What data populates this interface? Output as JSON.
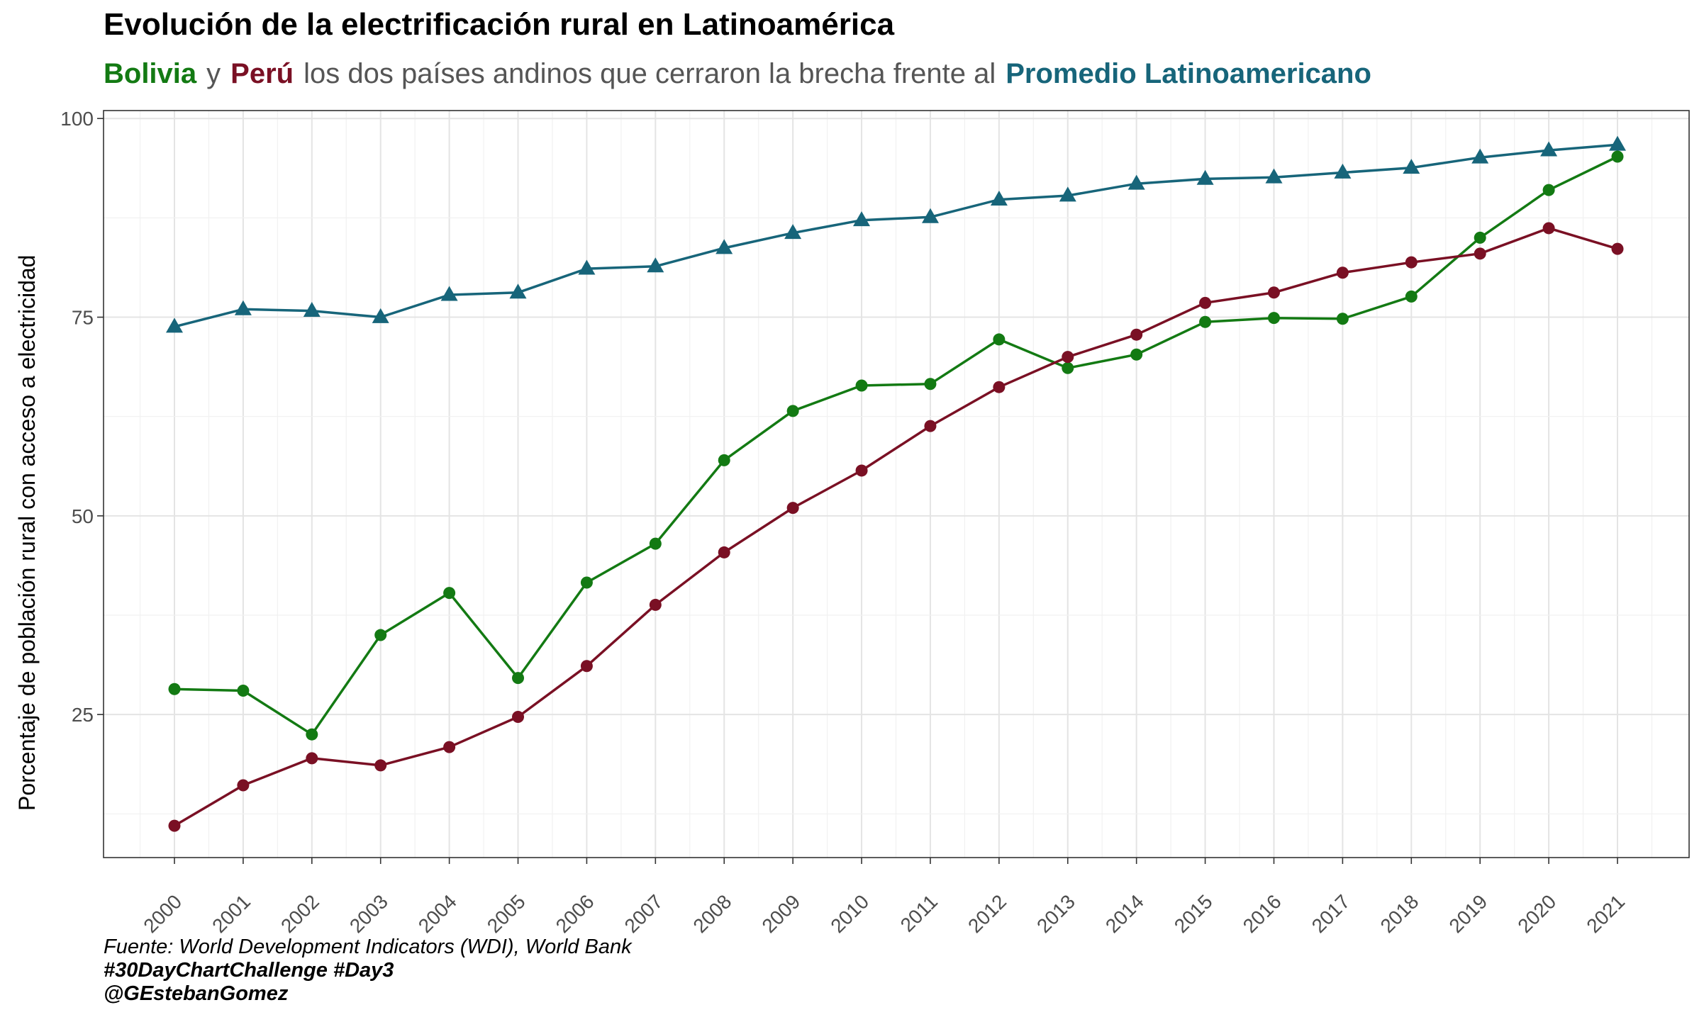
{
  "chart_data": {
    "type": "line",
    "title": "Evolución de la electrificación rural en Latinoamérica",
    "subtitle": {
      "bolivia": "Bolivia",
      "y": "y",
      "peru": "Perú",
      "middle": "los dos países andinos que cerraron la brecha frente al",
      "promedio": "Promedio Latinoamericano"
    },
    "ylabel": "Porcentaje de población rural con acceso a electricidad",
    "xlabel": "",
    "x": [
      "2000",
      "2001",
      "2002",
      "2003",
      "2004",
      "2005",
      "2006",
      "2007",
      "2008",
      "2009",
      "2010",
      "2011",
      "2012",
      "2013",
      "2014",
      "2015",
      "2016",
      "2017",
      "2018",
      "2019",
      "2020",
      "2021"
    ],
    "y_ticks": [
      25,
      50,
      75,
      100
    ],
    "ylim": [
      7,
      101
    ],
    "grid": true,
    "legend": "none",
    "series": [
      {
        "name": "Promedio Latinoamericano",
        "color": "#17657a",
        "marker": "triangle",
        "values": [
          73.8,
          76.0,
          75.8,
          75.0,
          77.8,
          78.1,
          81.1,
          81.4,
          83.7,
          85.6,
          87.2,
          87.6,
          89.8,
          90.3,
          91.8,
          92.4,
          92.6,
          93.2,
          93.8,
          95.1,
          96.0,
          96.7
        ]
      },
      {
        "name": "Bolivia",
        "color": "#137a13",
        "marker": "circle",
        "values": [
          28.2,
          28.0,
          22.5,
          35.0,
          40.3,
          29.6,
          41.6,
          46.5,
          57.0,
          63.2,
          66.4,
          66.6,
          72.2,
          68.6,
          70.3,
          74.4,
          74.9,
          74.8,
          77.6,
          85.0,
          91.0,
          95.2
        ]
      },
      {
        "name": "Perú",
        "color": "#7a1024",
        "marker": "circle",
        "values": [
          11.0,
          16.1,
          19.5,
          18.6,
          20.9,
          24.7,
          31.1,
          38.8,
          45.4,
          51.0,
          55.7,
          61.3,
          66.2,
          70.0,
          72.8,
          76.8,
          78.1,
          80.6,
          81.9,
          83.0,
          86.2,
          83.6
        ]
      }
    ]
  },
  "caption": {
    "source": "Fuente: World Development Indicators (WDI), World Bank",
    "challenge": "#30DayChartChallenge #Day3",
    "author": "@GEstebanGomez"
  }
}
